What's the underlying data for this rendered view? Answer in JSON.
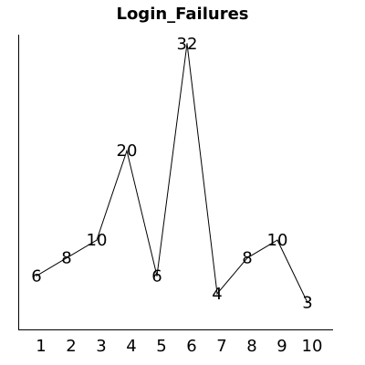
{
  "chart_data": {
    "type": "line",
    "title": "Login_Failures",
    "xlabel": "",
    "ylabel": "",
    "categories": [
      "1",
      "2",
      "3",
      "4",
      "5",
      "6",
      "7",
      "8",
      "9",
      "10"
    ],
    "series": [
      {
        "values": [
          6,
          8,
          10,
          20,
          6,
          32,
          4,
          8,
          10,
          3
        ]
      }
    ],
    "data_labels": [
      "6",
      "8",
      "10",
      "20",
      "6",
      "32",
      "4",
      "8",
      "10",
      "3"
    ],
    "ylim": [
      0,
      33
    ],
    "grid": false,
    "legend": "none",
    "colors": {
      "line": "#000000",
      "axis": "#000000",
      "background": "#ffffff"
    }
  }
}
